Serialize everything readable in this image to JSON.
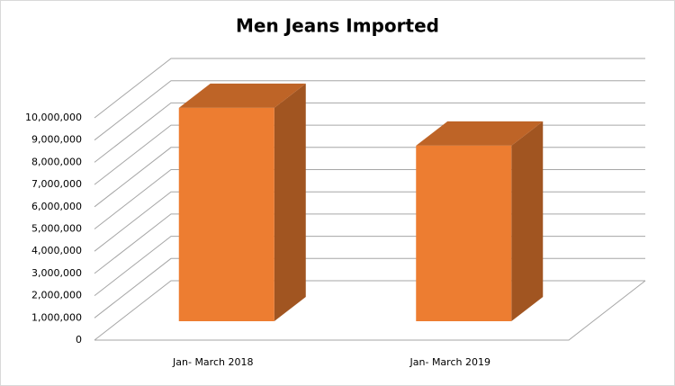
{
  "chart_data": {
    "type": "bar3d",
    "title": "Men Jeans Imported",
    "categories": [
      "Jan- March 2018",
      "Jan- March 2019"
    ],
    "values": [
      9600000,
      7900000
    ],
    "color": "#ed7d31",
    "ylim": [
      0,
      10000000
    ],
    "yticks": [
      0,
      {
        "value": 1000000,
        "label": "1,000,000"
      },
      {
        "value": 2000000,
        "label": "2,000,000"
      },
      {
        "value": 3000000,
        "label": "3,000,000"
      },
      {
        "value": 4000000,
        "label": "4,000,000"
      },
      {
        "value": 5000000,
        "label": "5,000,000"
      },
      {
        "value": 6000000,
        "label": "6,000,000"
      },
      {
        "value": 7000000,
        "label": "7,000,000"
      },
      {
        "value": 8000000,
        "label": "8,000,000"
      },
      {
        "value": 9000000,
        "label": "9,000,000"
      },
      {
        "value": 10000000,
        "label": "10,000,000"
      }
    ],
    "grid": true
  }
}
